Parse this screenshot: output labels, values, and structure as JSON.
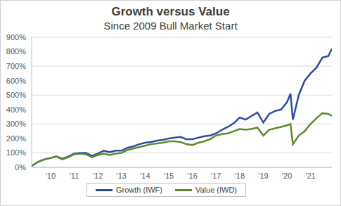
{
  "chart_data": {
    "type": "line",
    "title": "Growth versus Value",
    "subtitle": "Since 2009 Bull Market Start",
    "x": [
      2009.2,
      2009.5,
      2009.75,
      2010,
      2010.25,
      2010.5,
      2010.75,
      2011,
      2011.25,
      2011.5,
      2011.75,
      2012,
      2012.25,
      2012.5,
      2012.75,
      2013,
      2013.25,
      2013.5,
      2013.75,
      2014,
      2014.25,
      2014.5,
      2014.75,
      2015,
      2015.25,
      2015.5,
      2015.75,
      2016,
      2016.25,
      2016.5,
      2016.75,
      2017,
      2017.25,
      2017.5,
      2017.75,
      2018,
      2018.25,
      2018.5,
      2018.75,
      2019,
      2019.25,
      2019.5,
      2019.75,
      2020,
      2020.15,
      2020.25,
      2020.5,
      2020.75,
      2021,
      2021.25,
      2021.5,
      2021.75,
      2021.9
    ],
    "series": [
      {
        "name": "Growth (IWF)",
        "color": "#2e4d9e",
        "values": [
          10,
          40,
          55,
          65,
          75,
          60,
          75,
          95,
          100,
          100,
          80,
          95,
          115,
          105,
          115,
          115,
          135,
          145,
          160,
          170,
          175,
          185,
          190,
          200,
          205,
          210,
          195,
          195,
          205,
          215,
          220,
          235,
          260,
          280,
          305,
          345,
          330,
          355,
          380,
          310,
          370,
          390,
          400,
          450,
          510,
          330,
          500,
          600,
          650,
          690,
          760,
          770,
          820
        ]
      },
      {
        "name": "Value (IWD)",
        "color": "#5b8c2a",
        "values": [
          10,
          40,
          55,
          65,
          75,
          55,
          70,
          90,
          95,
          90,
          70,
          85,
          95,
          85,
          95,
          100,
          120,
          130,
          140,
          150,
          160,
          165,
          170,
          180,
          180,
          175,
          160,
          155,
          170,
          180,
          195,
          220,
          230,
          235,
          250,
          265,
          260,
          265,
          275,
          220,
          260,
          270,
          280,
          290,
          300,
          160,
          220,
          250,
          300,
          340,
          375,
          370,
          355
        ]
      }
    ],
    "xlim": [
      2009.2,
      2021.9
    ],
    "xticks": [
      {
        "value": 2010,
        "label": "'10"
      },
      {
        "value": 2011,
        "label": "'11"
      },
      {
        "value": 2012,
        "label": "'12"
      },
      {
        "value": 2013,
        "label": "'13"
      },
      {
        "value": 2014,
        "label": "'14"
      },
      {
        "value": 2015,
        "label": "'15"
      },
      {
        "value": 2016,
        "label": "'16"
      },
      {
        "value": 2017,
        "label": "'17"
      },
      {
        "value": 2018,
        "label": "'18"
      },
      {
        "value": 2019,
        "label": "'19"
      },
      {
        "value": 2020,
        "label": "'20"
      },
      {
        "value": 2021,
        "label": "'21"
      }
    ],
    "ylim": [
      0,
      900
    ],
    "yticks": [
      {
        "value": 0,
        "label": "0%"
      },
      {
        "value": 100,
        "label": "100%"
      },
      {
        "value": 200,
        "label": "200%"
      },
      {
        "value": 300,
        "label": "300%"
      },
      {
        "value": 400,
        "label": "400%"
      },
      {
        "value": 500,
        "label": "500%"
      },
      {
        "value": 600,
        "label": "600%"
      },
      {
        "value": 700,
        "label": "700%"
      },
      {
        "value": 800,
        "label": "800%"
      },
      {
        "value": 900,
        "label": "900%"
      }
    ],
    "grid": true,
    "legend": "bottom"
  }
}
